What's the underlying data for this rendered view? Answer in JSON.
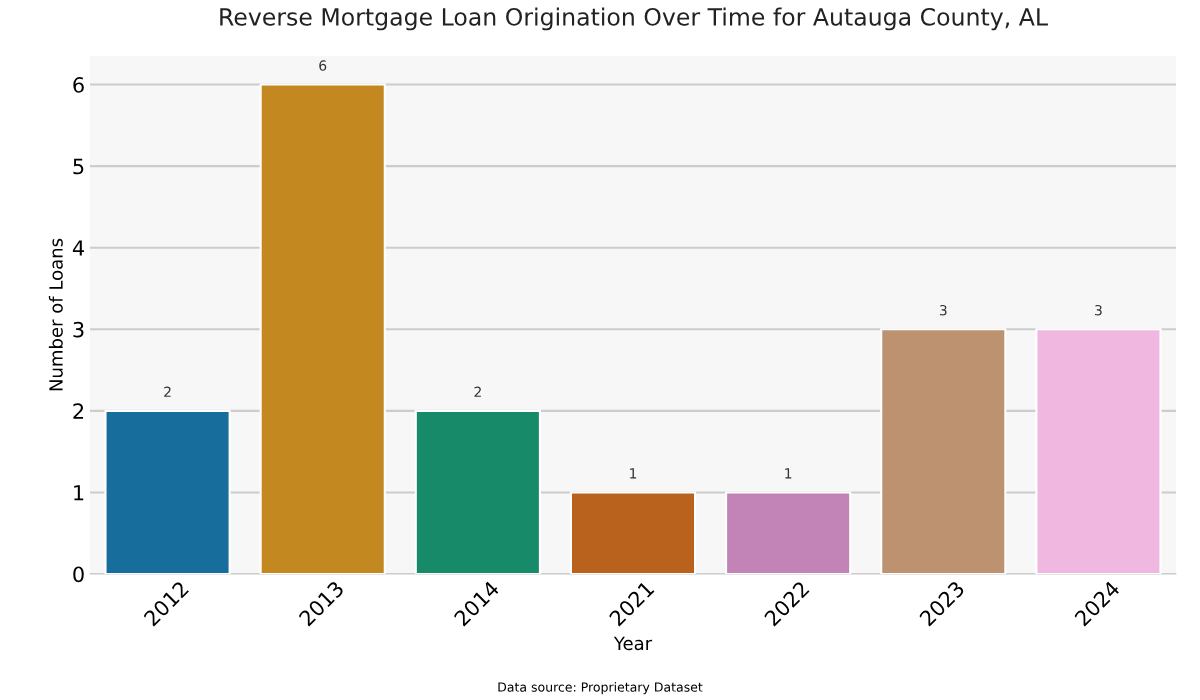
{
  "chart_data": {
    "type": "bar",
    "title": "Reverse Mortgage Loan Origination Over Time for Autauga County, AL",
    "xlabel": "Year",
    "ylabel": "Number of Loans",
    "categories": [
      "2012",
      "2013",
      "2014",
      "2021",
      "2022",
      "2023",
      "2024"
    ],
    "values": [
      2,
      6,
      2,
      1,
      1,
      3,
      3
    ],
    "colors": [
      "#176d9c",
      "#c38820",
      "#168a69",
      "#b8621e",
      "#c283b6",
      "#bd9270",
      "#f0b8e1"
    ],
    "ylim": [
      0,
      6.35
    ],
    "yticks": [
      0,
      1,
      2,
      3,
      4,
      5,
      6
    ],
    "grid": "y",
    "data_labels": true,
    "annotations": [
      "Data source: Proprietary Dataset"
    ]
  }
}
